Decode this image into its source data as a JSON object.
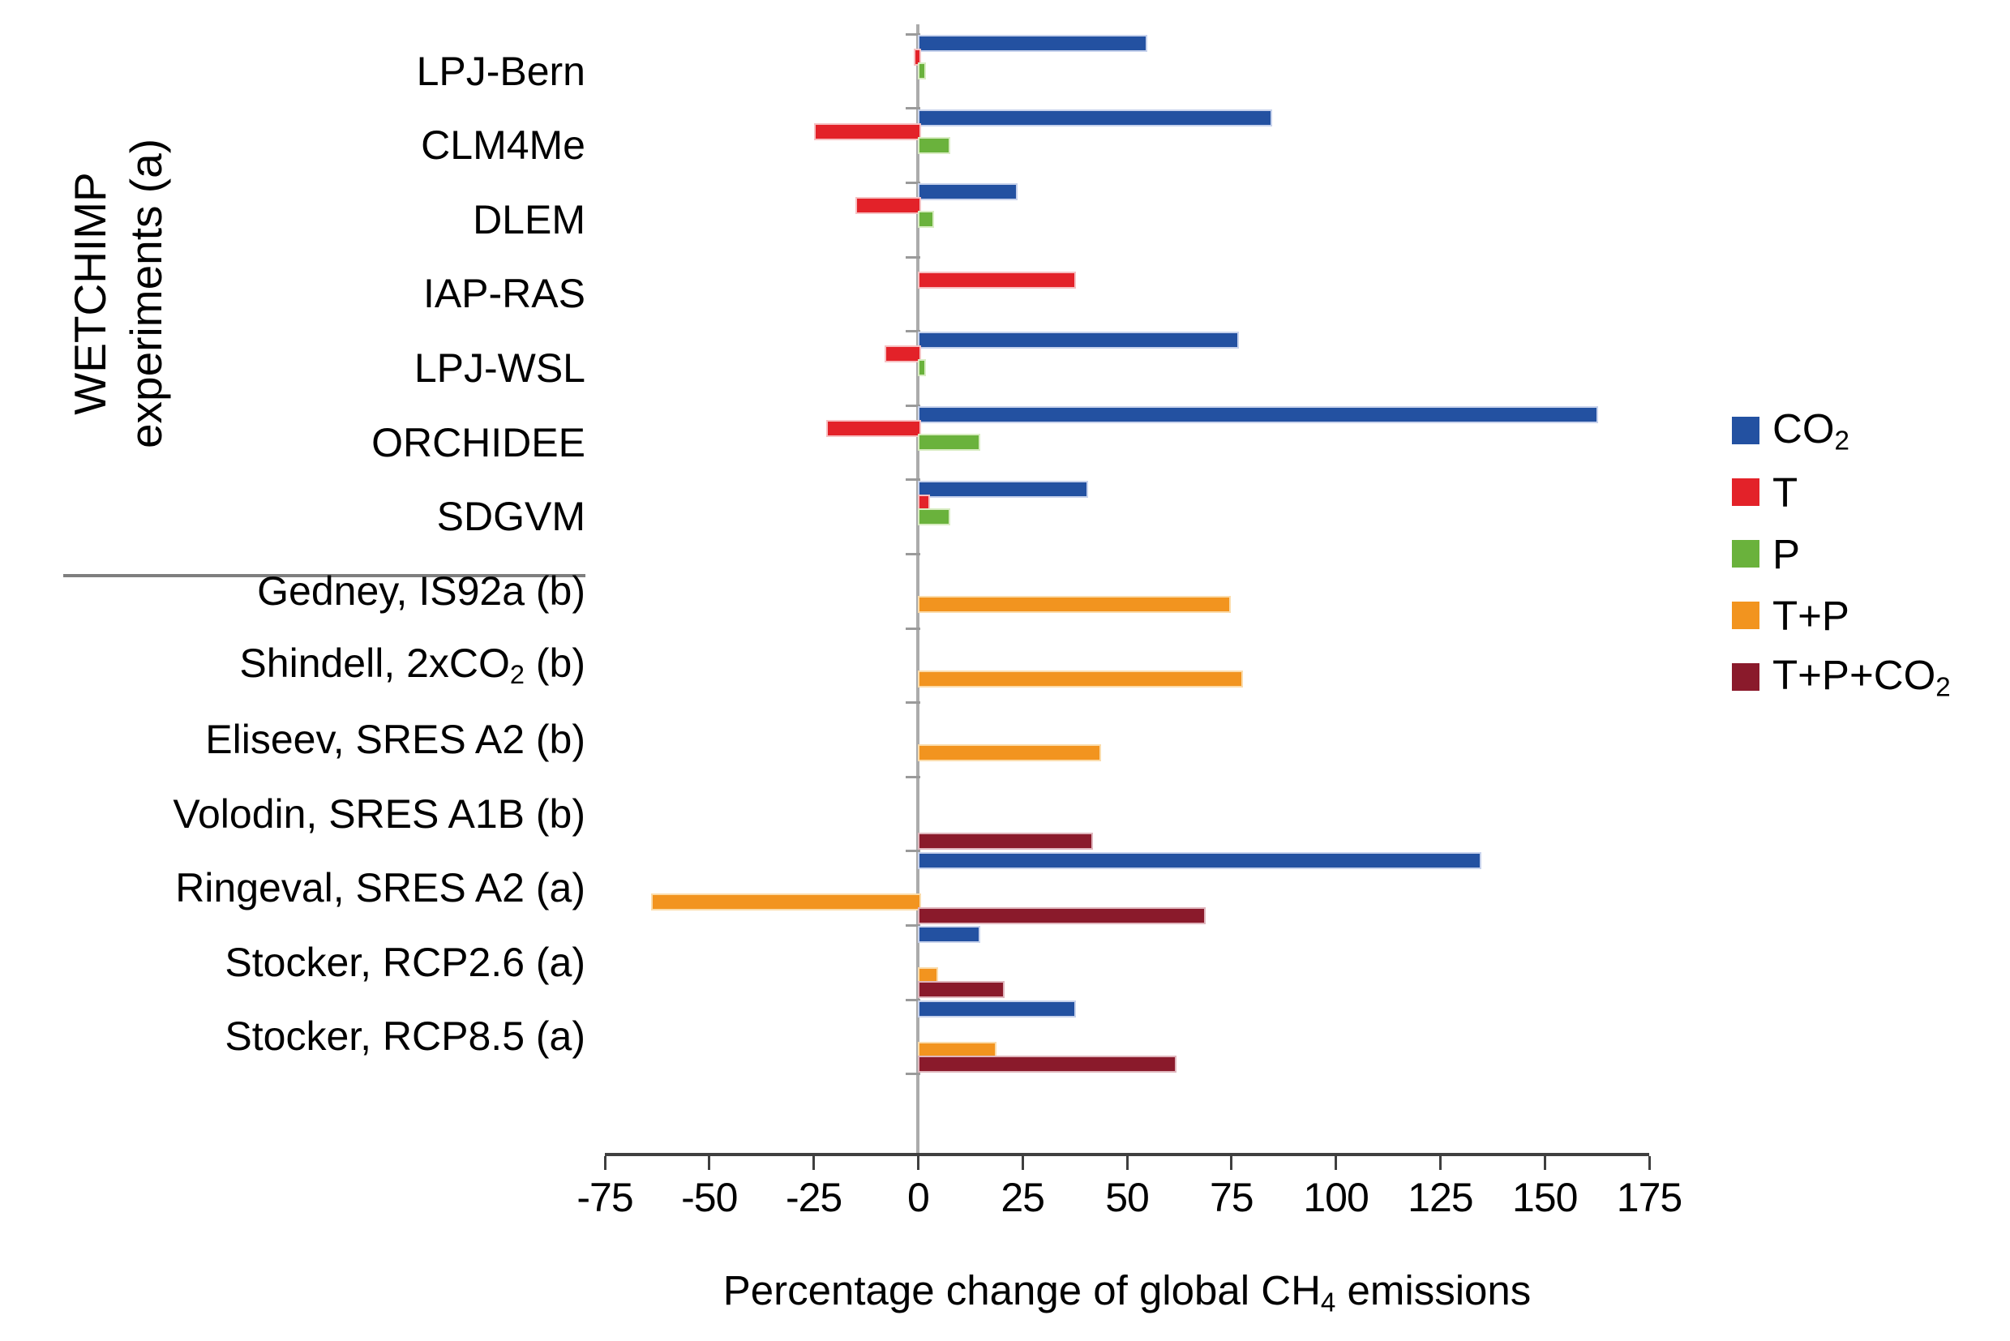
{
  "chart_data": {
    "type": "bar",
    "orientation": "horizontal",
    "xlabel": "Percentage change of global CH_{4} emissions",
    "group_label_lines": [
      "WETCHIMP",
      "experiments (a)"
    ],
    "xlim": [
      -75,
      175
    ],
    "x_ticks": [
      -75,
      -50,
      -25,
      0,
      25,
      50,
      75,
      100,
      125,
      150,
      175
    ],
    "grid": "zero-line-only",
    "legend_position": "right",
    "series": [
      {
        "id": "co2",
        "label": "CO_{2}",
        "color": "#2351a1",
        "border": "#c7d2ec"
      },
      {
        "id": "t",
        "label": "T",
        "color": "#e32229",
        "border": "#f6c0c2"
      },
      {
        "id": "p",
        "label": "P",
        "color": "#6ab23c",
        "border": "#d8ecc2"
      },
      {
        "id": "tp",
        "label": "T+P",
        "color": "#f2941f",
        "border": "#fbdcab"
      },
      {
        "id": "tpco2",
        "label": "T+P+CO_{2}",
        "color": "#8a1a2b",
        "border": "#dfb6bd"
      }
    ],
    "categories": [
      {
        "label": "LPJ-Bern",
        "values": {
          "co2": 54,
          "t": -1,
          "p": 1
        }
      },
      {
        "label": "CLM4Me",
        "values": {
          "co2": 84,
          "t": -25,
          "p": 7
        }
      },
      {
        "label": "DLEM",
        "values": {
          "co2": 23,
          "t": -15,
          "p": 3
        }
      },
      {
        "label": "IAP-RAS",
        "values": {
          "t": 37
        }
      },
      {
        "label": "LPJ-WSL",
        "values": {
          "co2": 76,
          "t": -8,
          "p": 1
        }
      },
      {
        "label": "ORCHIDEE",
        "values": {
          "co2": 162,
          "t": -22,
          "p": 14
        }
      },
      {
        "label": "SDGVM",
        "values": {
          "co2": 40,
          "t": 2,
          "p": 7
        }
      },
      {
        "label": "Gedney, IS92a (b)",
        "values": {
          "tp": 74
        }
      },
      {
        "label": "Shindell, 2xCO_{2} (b)",
        "values": {
          "tp": 77
        }
      },
      {
        "label": "Eliseev, SRES A2 (b)",
        "values": {
          "tp": 43
        }
      },
      {
        "label": "Volodin, SRES A1B (b)",
        "values": {
          "tpco2": 41
        }
      },
      {
        "label": "Ringeval, SRES A2 (a)",
        "values": {
          "co2": 134,
          "tp": -64,
          "tpco2": 68
        }
      },
      {
        "label": "Stocker, RCP2.6 (a)",
        "values": {
          "co2": 14,
          "tp": 4,
          "tpco2": 20
        }
      },
      {
        "label": "Stocker, RCP8.5 (a)",
        "values": {
          "co2": 37,
          "tp": 18,
          "tpco2": 61
        }
      }
    ],
    "separator_after_category_index": 6
  }
}
